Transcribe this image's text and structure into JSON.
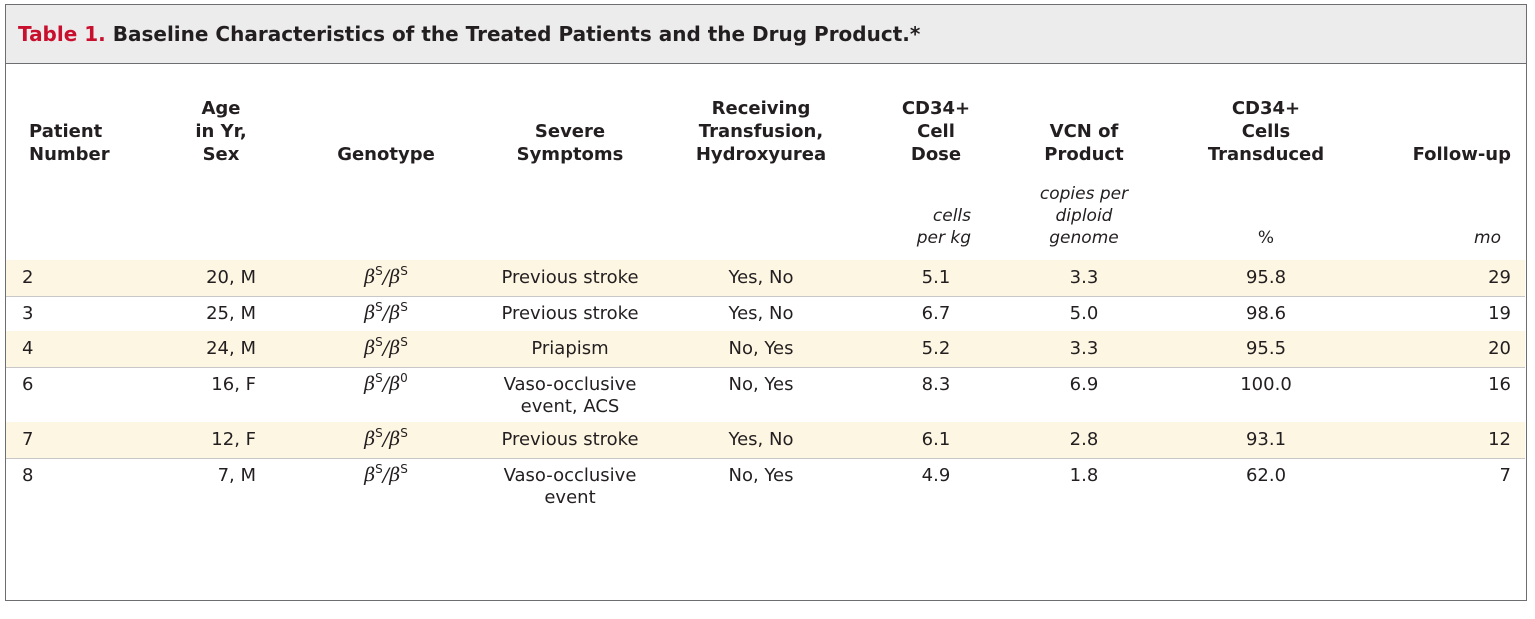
{
  "table": {
    "number": "Table 1.",
    "title": " Baseline Characteristics of the Treated Patients and the Drug Product.*",
    "headers": {
      "patient": [
        "Patient",
        "Number"
      ],
      "age": [
        "Age",
        "in Yr,",
        "Sex"
      ],
      "genotype": [
        "Genotype"
      ],
      "symptoms": [
        "Severe",
        "Symptoms"
      ],
      "transfusion": [
        "Receiving",
        "Transfusion,",
        "Hydroxyurea"
      ],
      "dose": [
        "CD34+",
        "Cell",
        "Dose"
      ],
      "vcn": [
        "VCN of",
        "Product"
      ],
      "transduced": [
        "CD34+",
        "Cells",
        "Transduced"
      ],
      "followup": [
        "Follow-up"
      ]
    },
    "units": {
      "dose": [
        "cells",
        "per kg"
      ],
      "vcn": [
        "copies per",
        "diploid",
        "genome"
      ],
      "transduced": "%",
      "followup": "mo"
    },
    "rows": [
      {
        "patient": "2",
        "age_sex": "20, M",
        "geno_a": "S",
        "geno_b": "S",
        "symptoms": "Previous stroke",
        "transfusion": "Yes, No",
        "dose": "5.1",
        "vcn": "3.3",
        "transduced": "95.8",
        "followup": "29"
      },
      {
        "patient": "3",
        "age_sex": "25, M",
        "geno_a": "S",
        "geno_b": "S",
        "symptoms": "Previous stroke",
        "transfusion": "Yes, No",
        "dose": "6.7",
        "vcn": "5.0",
        "transduced": "98.6",
        "followup": "19"
      },
      {
        "patient": "4",
        "age_sex": "24, M",
        "geno_a": "S",
        "geno_b": "S",
        "symptoms": "Priapism",
        "transfusion": "No, Yes",
        "dose": "5.2",
        "vcn": "3.3",
        "transduced": "95.5",
        "followup": "20"
      },
      {
        "patient": "6",
        "age_sex": "16, F",
        "geno_a": "S",
        "geno_b": "0",
        "symptoms": "Vaso-occlusive event, ACS",
        "transfusion": "No, Yes",
        "dose": "8.3",
        "vcn": "6.9",
        "transduced": "100.0",
        "followup": "16"
      },
      {
        "patient": "7",
        "age_sex": "12, F",
        "geno_a": "S",
        "geno_b": "S",
        "symptoms": "Previous stroke",
        "transfusion": "Yes, No",
        "dose": "6.1",
        "vcn": "2.8",
        "transduced": "93.1",
        "followup": "12"
      },
      {
        "patient": "8",
        "age_sex": "7, M",
        "geno_a": "S",
        "geno_b": "S",
        "symptoms": "Vaso-occlusive event",
        "transfusion": "No, Yes",
        "dose": "4.9",
        "vcn": "1.8",
        "transduced": "62.0",
        "followup": "7"
      }
    ],
    "genotype_symbol": "β",
    "colors": {
      "accent": "#c8102e",
      "caption_bg": "#ececec",
      "row_shade": "#fdf6e3",
      "border": "#6d6e71"
    }
  }
}
